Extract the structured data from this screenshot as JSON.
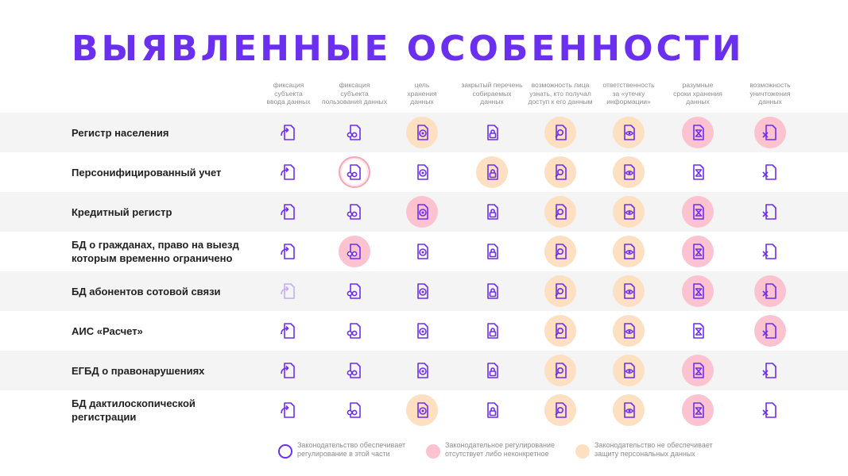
{
  "title": "ВЫЯВЛЕННЫЕ ОСОБЕННОСТИ",
  "columns": [
    "фиксация\nсубъекта\nввода данных",
    "фиксация\nсубъекта\nпользования данных",
    "цель\nхранения\nданных",
    "закрытый перечень\nсобираемых\nданных",
    "возможность лица\nузнать, кто получал\nдоступ к его данным",
    "ответственность\nза «утечку\nинформации»",
    "разумные\nсроки хранения\nданных",
    "возможность\nуничтожения\nданных"
  ],
  "column_icons": [
    "doc-arrow-icon",
    "doc-glasses-icon",
    "doc-target-icon",
    "doc-lock-icon",
    "doc-search-icon",
    "doc-eye-icon",
    "doc-hourglass-icon",
    "doc-cross-icon"
  ],
  "status_colors": {
    "ok": "#6b2ff0",
    "pink": "#fbc3d0",
    "orange": "#fde0c2"
  },
  "rows": [
    {
      "label": "Регистр населения",
      "cells": [
        "ok",
        "ok",
        "orange",
        "ok",
        "orange",
        "orange",
        "pink",
        "pink"
      ]
    },
    {
      "label": "Персонифицированный учет",
      "cells": [
        "ok",
        "ring",
        "ok",
        "orange",
        "orange",
        "orange",
        "ok",
        "ok"
      ]
    },
    {
      "label": "Кредитный регистр",
      "cells": [
        "ok",
        "ok",
        "pink",
        "ok",
        "orange",
        "orange",
        "pink",
        "ok"
      ]
    },
    {
      "label": "БД о гражданах, право на выезд\nкоторым временно ограничено",
      "cells": [
        "ok",
        "pink",
        "ok",
        "ok",
        "orange",
        "orange",
        "pink",
        "ok"
      ]
    },
    {
      "label": "БД абонентов сотовой связи",
      "cells": [
        "faded",
        "ok",
        "ok",
        "ok",
        "orange",
        "orange",
        "pink",
        "pink"
      ]
    },
    {
      "label": "АИС «Расчет»",
      "cells": [
        "ok",
        "ok",
        "ok",
        "ok",
        "orange",
        "orange",
        "ok",
        "pink"
      ]
    },
    {
      "label": "ЕГБД о правонарушениях",
      "cells": [
        "ok",
        "ok",
        "ok",
        "ok",
        "orange",
        "orange",
        "pink",
        "ok"
      ]
    },
    {
      "label": "БД дактилоскопической\nрегистрации",
      "cells": [
        "ok",
        "ok",
        "orange",
        "ok",
        "orange",
        "orange",
        "pink",
        "ok"
      ]
    }
  ],
  "legend": [
    {
      "type": "ok",
      "text": "Законодательство обеспечивает\nрегулирование в этой части"
    },
    {
      "type": "pink",
      "text": "Законодательное регулирование\nотсутствует либо неконкретное"
    },
    {
      "type": "orange",
      "text": "Законодательство не обеспечивает\nзащиту персональных данных"
    }
  ]
}
